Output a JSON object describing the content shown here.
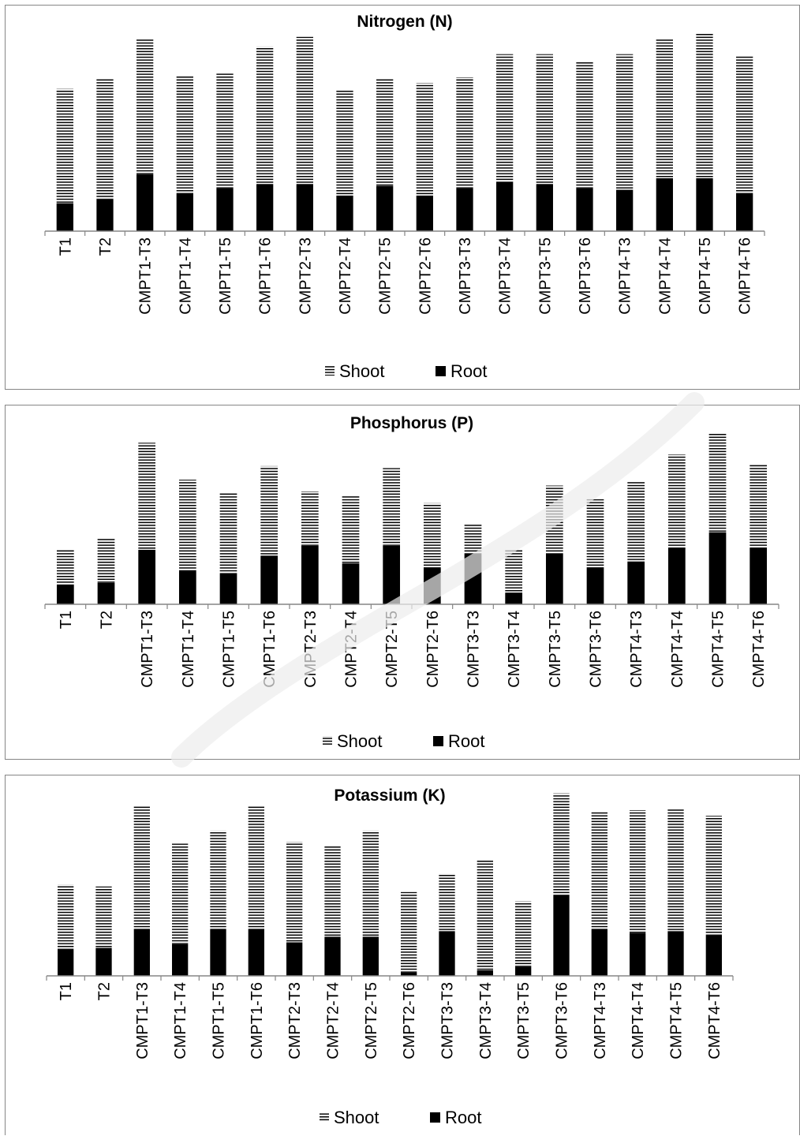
{
  "colors": {
    "root": "#000000",
    "shoot_stripe": "#000000",
    "axis": "#868686",
    "border": "#868686"
  },
  "chart_data": [
    {
      "type": "bar",
      "stacked": true,
      "title": "Nitrogen (N)",
      "categories": [
        "T1",
        "T2",
        "CMPT1-T3",
        "CMPT1-T4",
        "CMPT1-T5",
        "CMPT1-T6",
        "CMPT2-T3",
        "CMPT2-T4",
        "CMPT2-T5",
        "CMPT2-T6",
        "CMPT3-T3",
        "CMPT3-T4",
        "CMPT3-T5",
        "CMPT3-T6",
        "CMPT4-T3",
        "CMPT4-T4",
        "CMPT4-T5",
        "CMPT4-T6"
      ],
      "series": [
        {
          "name": "Root",
          "values": [
            14.5,
            16.5,
            29.5,
            19.5,
            22.5,
            24.5,
            24.5,
            18.5,
            23.5,
            18.5,
            22.5,
            25.5,
            24.5,
            22.5,
            21.5,
            27.5,
            27.5,
            19.5
          ]
        },
        {
          "name": "Shoot",
          "values": [
            59.5,
            62.5,
            70.5,
            61.5,
            59.5,
            71.5,
            76.5,
            54.5,
            55.5,
            58.5,
            57.5,
            66.5,
            67.5,
            65.5,
            70.5,
            72.5,
            75.5,
            71.5
          ]
        }
      ],
      "ylim": [
        0,
        105
      ],
      "grid": false,
      "legend": {
        "position": "bottom",
        "entries": [
          "Shoot",
          "Root"
        ]
      }
    },
    {
      "type": "bar",
      "stacked": true,
      "title": "Phosphorus (P)",
      "categories": [
        "T1",
        "T2",
        "CMPT1-T3",
        "CMPT1-T4",
        "CMPT1-T5",
        "CMPT1-T6",
        "CMPT2-T3",
        "CMPT2-T4",
        "CMPT2-T5",
        "CMPT2-T6",
        "CMPT3-T3",
        "CMPT3-T4",
        "CMPT3-T5",
        "CMPT3-T6",
        "CMPT4-T3",
        "CMPT4-T4",
        "CMPT4-T5",
        "CMPT4-T6"
      ],
      "series": [
        {
          "name": "Root",
          "values": [
            10,
            11,
            28,
            17,
            16,
            25,
            30,
            21,
            30,
            19,
            26,
            6,
            26,
            19,
            22,
            29,
            37,
            29
          ]
        },
        {
          "name": "Shoot",
          "values": [
            18,
            23,
            55,
            47,
            41,
            46,
            28,
            35,
            40,
            33,
            15,
            22,
            35,
            35,
            41,
            48,
            51,
            43
          ]
        }
      ],
      "ylim": [
        0,
        90
      ],
      "grid": false,
      "legend": {
        "position": "bottom",
        "entries": [
          "Shoot",
          "Root"
        ]
      }
    },
    {
      "type": "bar",
      "stacked": true,
      "title": "Potassium (K)",
      "categories": [
        "T1",
        "T2",
        "CMPT1-T3",
        "CMPT1-T4",
        "CMPT1-T5",
        "CMPT1-T6",
        "CMPT2-T3",
        "CMPT2-T4",
        "CMPT2-T5",
        "CMPT2-T6",
        "CMPT3-T3",
        "CMPT3-T4",
        "CMPT3-T5",
        "CMPT3-T6",
        "CMPT4-T3",
        "CMPT4-T4",
        "CMPT4-T5",
        "CMPT4-T6"
      ],
      "series": [
        {
          "name": "Root",
          "values": [
            14,
            15,
            25,
            17,
            25,
            25,
            18,
            21,
            21,
            2,
            24,
            3,
            5,
            43,
            25,
            23,
            24,
            22
          ]
        },
        {
          "name": "Shoot",
          "values": [
            35,
            33,
            66,
            54,
            53,
            66,
            54,
            49,
            57,
            43,
            31,
            59,
            35,
            55,
            63,
            66,
            66,
            64
          ]
        }
      ],
      "ylim": [
        0,
        100
      ],
      "grid": false,
      "legend": {
        "position": "bottom",
        "entries": [
          "Shoot",
          "Root"
        ]
      }
    }
  ]
}
